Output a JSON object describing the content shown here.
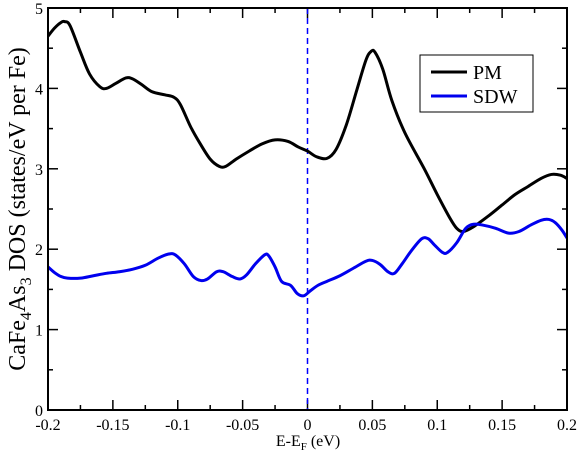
{
  "chart_data": {
    "type": "line",
    "ylabel_parts": [
      "CaFe",
      "4",
      "As",
      "3",
      " DOS (states/eV per Fe)"
    ],
    "xlabel_parts": [
      "E-E",
      "F",
      " (eV)"
    ],
    "xlim": [
      -0.2,
      0.2
    ],
    "ylim": [
      0,
      5
    ],
    "x_ticks": [
      -0.2,
      -0.15,
      -0.1,
      -0.05,
      0,
      0.05,
      0.1,
      0.15,
      0.2
    ],
    "x_tick_labels": [
      "-0.2",
      "-0.15",
      "-0.1",
      "-0.05",
      "0",
      "0.05",
      "0.1",
      "0.15",
      "0.2"
    ],
    "y_ticks": [
      0,
      1,
      2,
      3,
      4,
      5
    ],
    "y_tick_labels": [
      "0",
      "1",
      "2",
      "3",
      "4",
      "5"
    ],
    "grid": false,
    "legend_position": "top-right",
    "fermi_level": 0,
    "fermi_line_color": "#0000ff",
    "series": [
      {
        "name": "PM",
        "color": "#000000",
        "points": [
          [
            -0.2,
            4.65
          ],
          [
            -0.195,
            4.75
          ],
          [
            -0.19,
            4.82
          ],
          [
            -0.187,
            4.83
          ],
          [
            -0.183,
            4.78
          ],
          [
            -0.175,
            4.45
          ],
          [
            -0.168,
            4.18
          ],
          [
            -0.16,
            4.02
          ],
          [
            -0.155,
            4.0
          ],
          [
            -0.148,
            4.06
          ],
          [
            -0.14,
            4.13
          ],
          [
            -0.135,
            4.12
          ],
          [
            -0.128,
            4.05
          ],
          [
            -0.12,
            3.96
          ],
          [
            -0.11,
            3.92
          ],
          [
            -0.103,
            3.89
          ],
          [
            -0.098,
            3.8
          ],
          [
            -0.09,
            3.52
          ],
          [
            -0.083,
            3.32
          ],
          [
            -0.075,
            3.12
          ],
          [
            -0.068,
            3.03
          ],
          [
            -0.063,
            3.03
          ],
          [
            -0.055,
            3.12
          ],
          [
            -0.045,
            3.22
          ],
          [
            -0.035,
            3.31
          ],
          [
            -0.025,
            3.36
          ],
          [
            -0.015,
            3.34
          ],
          [
            -0.007,
            3.27
          ],
          [
            0.0,
            3.22
          ],
          [
            0.007,
            3.15
          ],
          [
            0.015,
            3.13
          ],
          [
            0.022,
            3.24
          ],
          [
            0.03,
            3.55
          ],
          [
            0.038,
            3.98
          ],
          [
            0.045,
            4.35
          ],
          [
            0.049,
            4.46
          ],
          [
            0.052,
            4.45
          ],
          [
            0.058,
            4.24
          ],
          [
            0.065,
            3.85
          ],
          [
            0.075,
            3.45
          ],
          [
            0.09,
            3.0
          ],
          [
            0.1,
            2.68
          ],
          [
            0.11,
            2.38
          ],
          [
            0.115,
            2.26
          ],
          [
            0.12,
            2.22
          ],
          [
            0.128,
            2.28
          ],
          [
            0.14,
            2.42
          ],
          [
            0.15,
            2.55
          ],
          [
            0.16,
            2.68
          ],
          [
            0.17,
            2.78
          ],
          [
            0.18,
            2.88
          ],
          [
            0.188,
            2.93
          ],
          [
            0.195,
            2.92
          ],
          [
            0.2,
            2.88
          ]
        ]
      },
      {
        "name": "SDW",
        "color": "#0000ee",
        "points": [
          [
            -0.2,
            1.78
          ],
          [
            -0.195,
            1.71
          ],
          [
            -0.19,
            1.66
          ],
          [
            -0.185,
            1.64
          ],
          [
            -0.175,
            1.64
          ],
          [
            -0.165,
            1.67
          ],
          [
            -0.155,
            1.7
          ],
          [
            -0.145,
            1.72
          ],
          [
            -0.135,
            1.75
          ],
          [
            -0.125,
            1.8
          ],
          [
            -0.115,
            1.89
          ],
          [
            -0.107,
            1.94
          ],
          [
            -0.102,
            1.93
          ],
          [
            -0.095,
            1.82
          ],
          [
            -0.088,
            1.66
          ],
          [
            -0.082,
            1.61
          ],
          [
            -0.077,
            1.63
          ],
          [
            -0.07,
            1.72
          ],
          [
            -0.065,
            1.72
          ],
          [
            -0.058,
            1.66
          ],
          [
            -0.052,
            1.63
          ],
          [
            -0.047,
            1.68
          ],
          [
            -0.04,
            1.82
          ],
          [
            -0.033,
            1.93
          ],
          [
            -0.03,
            1.92
          ],
          [
            -0.025,
            1.78
          ],
          [
            -0.02,
            1.6
          ],
          [
            -0.013,
            1.55
          ],
          [
            -0.008,
            1.45
          ],
          [
            -0.003,
            1.42
          ],
          [
            0.002,
            1.48
          ],
          [
            0.008,
            1.55
          ],
          [
            0.015,
            1.6
          ],
          [
            0.025,
            1.67
          ],
          [
            0.035,
            1.76
          ],
          [
            0.045,
            1.85
          ],
          [
            0.05,
            1.86
          ],
          [
            0.056,
            1.81
          ],
          [
            0.062,
            1.72
          ],
          [
            0.067,
            1.7
          ],
          [
            0.073,
            1.82
          ],
          [
            0.08,
            1.98
          ],
          [
            0.088,
            2.13
          ],
          [
            0.093,
            2.13
          ],
          [
            0.098,
            2.05
          ],
          [
            0.104,
            1.96
          ],
          [
            0.108,
            1.96
          ],
          [
            0.115,
            2.08
          ],
          [
            0.122,
            2.26
          ],
          [
            0.128,
            2.31
          ],
          [
            0.135,
            2.3
          ],
          [
            0.145,
            2.26
          ],
          [
            0.155,
            2.2
          ],
          [
            0.163,
            2.22
          ],
          [
            0.172,
            2.3
          ],
          [
            0.18,
            2.36
          ],
          [
            0.186,
            2.37
          ],
          [
            0.191,
            2.33
          ],
          [
            0.196,
            2.24
          ],
          [
            0.2,
            2.14
          ]
        ]
      }
    ]
  }
}
